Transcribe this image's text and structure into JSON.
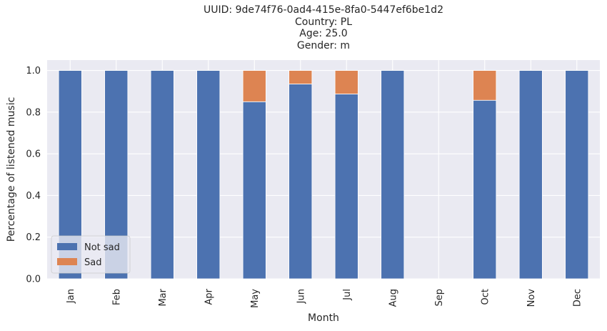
{
  "chart_data": {
    "type": "bar",
    "stacked": true,
    "title_lines": [
      "UUID: 9de74f76-0ad4-415e-8fa0-5447ef6be1d2",
      "Country: PL",
      "Age: 25.0",
      "Gender: m"
    ],
    "xlabel": "Month",
    "ylabel": "Percentage of listened music",
    "categories": [
      "Jan",
      "Feb",
      "Mar",
      "Apr",
      "May",
      "Jun",
      "Jul",
      "Aug",
      "Sep",
      "Oct",
      "Nov",
      "Dec"
    ],
    "series": [
      {
        "name": "Not sad",
        "color": "#4c72b0",
        "values": [
          1.0,
          1.0,
          1.0,
          1.0,
          0.85,
          0.935,
          0.887,
          1.0,
          0,
          0.857,
          1.0,
          1.0
        ]
      },
      {
        "name": "Sad",
        "color": "#dd8452",
        "values": [
          0,
          0,
          0,
          0,
          0.15,
          0.065,
          0.113,
          0,
          0,
          0.143,
          0,
          0
        ]
      }
    ],
    "ylim": [
      0,
      1.05
    ],
    "yticks": [
      "0.0",
      "0.2",
      "0.4",
      "0.6",
      "0.8",
      "1.0"
    ],
    "grid": true,
    "legend_position": "lower-left",
    "background": "#eaeaf2"
  }
}
